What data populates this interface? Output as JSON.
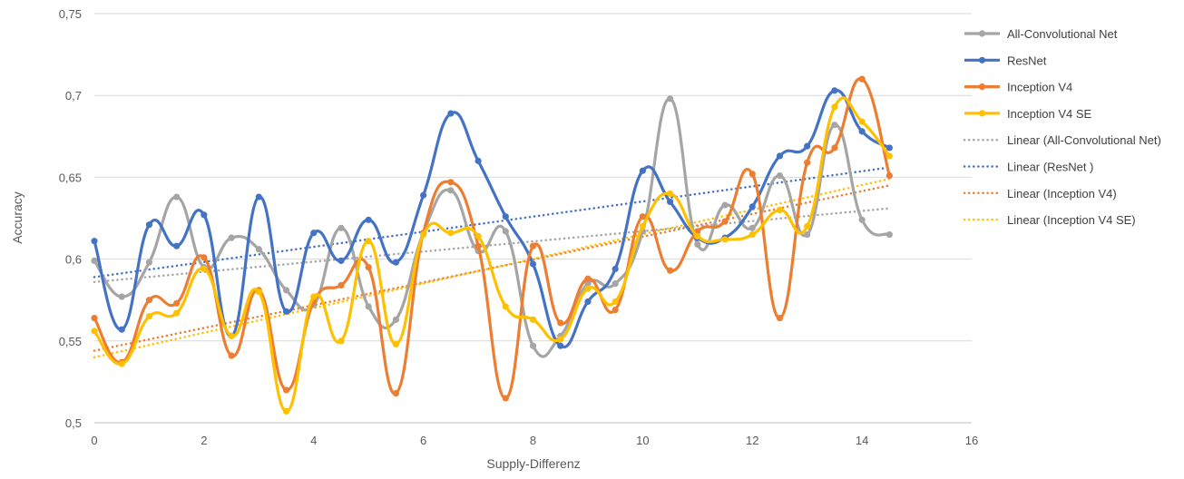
{
  "chart_data": {
    "type": "line",
    "title": "",
    "xlabel": "Supply-Differenz",
    "ylabel": "Accuracy",
    "xlim": [
      0,
      16
    ],
    "ylim": [
      0.5,
      0.75
    ],
    "x_ticks": [
      "0",
      "2",
      "4",
      "6",
      "8",
      "10",
      "12",
      "14",
      "16"
    ],
    "y_ticks": [
      "0,5",
      "0,55",
      "0,6",
      "0,65",
      "0,7",
      "0,75"
    ],
    "x": [
      0,
      0.5,
      1,
      1.5,
      2,
      2.5,
      3,
      3.5,
      4,
      4.5,
      5,
      5.5,
      6,
      6.5,
      7,
      7.5,
      8,
      8.5,
      9,
      9.5,
      10,
      10.5,
      11,
      11.5,
      12,
      12.5,
      13,
      13.5,
      14,
      14.5
    ],
    "grid": "horizontal",
    "legend_position": "right",
    "series": [
      {
        "name": "All-Convolutional Net",
        "color": "#A5A5A5",
        "values": [
          0.599,
          0.577,
          0.598,
          0.638,
          0.595,
          0.613,
          0.606,
          0.581,
          0.572,
          0.619,
          0.571,
          0.563,
          0.616,
          0.642,
          0.605,
          0.617,
          0.547,
          0.553,
          0.585,
          0.585,
          0.617,
          0.698,
          0.609,
          0.633,
          0.619,
          0.651,
          0.615,
          0.682,
          0.624,
          0.615
        ]
      },
      {
        "name": "ResNet",
        "color": "#4472C4",
        "values": [
          0.611,
          0.557,
          0.621,
          0.608,
          0.627,
          0.553,
          0.638,
          0.568,
          0.616,
          0.599,
          0.624,
          0.598,
          0.639,
          0.689,
          0.66,
          0.626,
          0.597,
          0.547,
          0.574,
          0.594,
          0.654,
          0.635,
          0.613,
          0.613,
          0.632,
          0.663,
          0.669,
          0.703,
          0.678,
          0.668
        ]
      },
      {
        "name": "Inception V4",
        "color": "#ED7D31",
        "values": [
          0.564,
          0.537,
          0.575,
          0.573,
          0.601,
          0.541,
          0.581,
          0.52,
          0.574,
          0.584,
          0.595,
          0.518,
          0.616,
          0.647,
          0.608,
          0.515,
          0.608,
          0.561,
          0.588,
          0.569,
          0.626,
          0.593,
          0.617,
          0.623,
          0.652,
          0.564,
          0.659,
          0.668,
          0.71,
          0.651
        ]
      },
      {
        "name": "Inception V4 SE",
        "color": "#FFC000",
        "values": [
          0.556,
          0.536,
          0.565,
          0.567,
          0.594,
          0.553,
          0.58,
          0.507,
          0.577,
          0.55,
          0.611,
          0.548,
          0.615,
          0.616,
          0.614,
          0.571,
          0.563,
          0.551,
          0.582,
          0.574,
          0.62,
          0.64,
          0.614,
          0.612,
          0.615,
          0.63,
          0.62,
          0.693,
          0.684,
          0.663
        ]
      }
    ],
    "trendlines": [
      {
        "name": "Linear (All-Convolutional Net)",
        "color": "#A5A5A5",
        "x": [
          0,
          14.5
        ],
        "values": [
          0.586,
          0.631
        ]
      },
      {
        "name": "Linear (ResNet )",
        "color": "#4472C4",
        "x": [
          0,
          14.5
        ],
        "values": [
          0.589,
          0.656
        ]
      },
      {
        "name": "Linear (Inception V4)",
        "color": "#ED7D31",
        "x": [
          0,
          14.5
        ],
        "values": [
          0.544,
          0.645
        ]
      },
      {
        "name": "Linear (Inception V4 SE)",
        "color": "#FFC000",
        "x": [
          0,
          14.5
        ],
        "values": [
          0.54,
          0.649
        ]
      }
    ]
  }
}
